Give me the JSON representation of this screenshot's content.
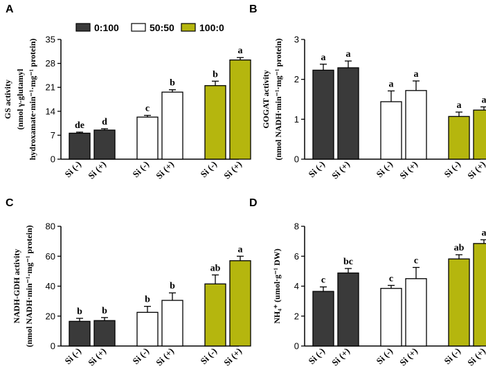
{
  "colors": {
    "ratio_0_100": "#3a3a3a",
    "ratio_50_50": "#ffffff",
    "ratio_100_0": "#b5b60e",
    "ink": "#000000"
  },
  "legend": [
    {
      "label": "0:100",
      "color": "#3a3a3a"
    },
    {
      "label": "50:50",
      "color": "#ffffff"
    },
    {
      "label": "100:0",
      "color": "#b5b60e"
    }
  ],
  "chart_data": [
    {
      "panel": "A",
      "type": "bar",
      "ylabel_lines": [
        "GS activity",
        "(nmol γ-glutamyl",
        "hydroxamate·min⁻¹·mg⁻¹ protein)"
      ],
      "ylim": [
        0,
        35
      ],
      "yticks": [
        0,
        7,
        14,
        21,
        28,
        35
      ],
      "categories": [
        "Si (-)",
        "Si (+)",
        "Si (-)",
        "Si (+)",
        "Si (-)",
        "Si (+)"
      ],
      "groups": [
        "0:100",
        "0:100",
        "50:50",
        "50:50",
        "100:0",
        "100:0"
      ],
      "values": [
        7.6,
        8.5,
        12.3,
        19.6,
        21.5,
        29.0
      ],
      "errors": [
        0.3,
        0.4,
        0.5,
        0.7,
        1.3,
        0.7
      ],
      "labels": [
        "de",
        "d",
        "c",
        "b",
        "b",
        "a"
      ]
    },
    {
      "panel": "B",
      "type": "bar",
      "ylabel_lines": [
        "GOGAT activity",
        "(nmol NADH·min⁻¹·mg⁻¹ protein)"
      ],
      "ylim": [
        0,
        3
      ],
      "yticks": [
        0,
        1,
        2,
        3
      ],
      "categories": [
        "Si (-)",
        "Si (+)",
        "Si (-)",
        "Si (+)",
        "Si (-)",
        "Si (+)"
      ],
      "groups": [
        "0:100",
        "0:100",
        "50:50",
        "50:50",
        "100:0",
        "100:0"
      ],
      "values": [
        2.23,
        2.29,
        1.44,
        1.72,
        1.07,
        1.23
      ],
      "errors": [
        0.15,
        0.17,
        0.27,
        0.24,
        0.11,
        0.08
      ],
      "labels": [
        "a",
        "a",
        "a",
        "a",
        "a",
        "a"
      ]
    },
    {
      "panel": "C",
      "type": "bar",
      "ylabel_lines": [
        "NADH-GDH activity",
        "(nmol NADH·min⁻¹·mg⁻¹ protein)"
      ],
      "ylim": [
        0,
        80
      ],
      "yticks": [
        0,
        20,
        40,
        60,
        80
      ],
      "categories": [
        "Si (-)",
        "Si (+)",
        "Si (-)",
        "Si (+)",
        "Si (-)",
        "Si (+)"
      ],
      "groups": [
        "0:100",
        "0:100",
        "50:50",
        "50:50",
        "100:0",
        "100:0"
      ],
      "values": [
        16.5,
        17.0,
        22.5,
        30.5,
        41.5,
        57.0
      ],
      "errors": [
        2.0,
        2.0,
        4.0,
        5.0,
        6.0,
        3.0
      ],
      "labels": [
        "b",
        "b",
        "b",
        "b",
        "ab",
        "a"
      ]
    },
    {
      "panel": "D",
      "type": "bar",
      "ylabel_lines": [
        "NH₄⁺ (umol·g⁻¹ DW)"
      ],
      "ylim": [
        0,
        8
      ],
      "yticks": [
        0,
        2,
        4,
        6,
        8
      ],
      "categories": [
        "Si (-)",
        "Si (+)",
        "Si (-)",
        "Si (+)",
        "Si (-)",
        "Si (+)"
      ],
      "groups": [
        "0:100",
        "0:100",
        "50:50",
        "50:50",
        "100:0",
        "100:0"
      ],
      "values": [
        3.65,
        4.88,
        3.85,
        4.5,
        5.82,
        6.85
      ],
      "errors": [
        0.3,
        0.3,
        0.2,
        0.75,
        0.28,
        0.25
      ],
      "labels": [
        "c",
        "bc",
        "c",
        "c",
        "ab",
        "a"
      ]
    }
  ]
}
